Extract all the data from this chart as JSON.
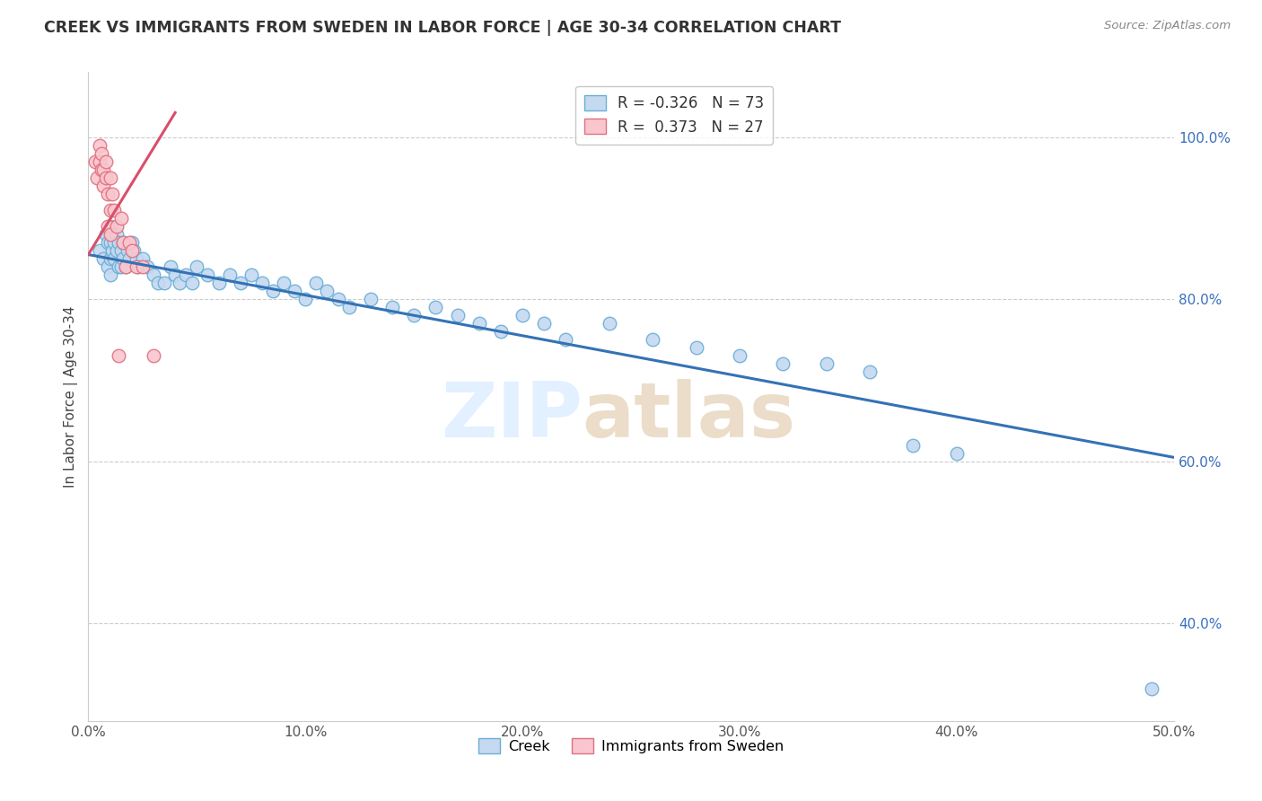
{
  "title": "CREEK VS IMMIGRANTS FROM SWEDEN IN LABOR FORCE | AGE 30-34 CORRELATION CHART",
  "source": "Source: ZipAtlas.com",
  "ylabel": "In Labor Force | Age 30-34",
  "xlim": [
    0.0,
    0.5
  ],
  "ylim": [
    0.28,
    1.08
  ],
  "xticks": [
    0.0,
    0.1,
    0.2,
    0.3,
    0.4,
    0.5
  ],
  "xticklabels": [
    "0.0%",
    "10.0%",
    "20.0%",
    "30.0%",
    "40.0%",
    "50.0%"
  ],
  "yticks_left": [],
  "yticks_right": [
    0.4,
    0.6,
    0.8,
    1.0
  ],
  "yticklabels_right": [
    "40.0%",
    "60.0%",
    "80.0%",
    "100.0%"
  ],
  "creek_R": -0.326,
  "creek_N": 73,
  "sweden_R": 0.373,
  "sweden_N": 27,
  "creek_color": "#c5d9f0",
  "creek_edge_color": "#6baed6",
  "sweden_color": "#f9c6ce",
  "sweden_edge_color": "#e07080",
  "creek_line_color": "#3472b5",
  "sweden_line_color": "#d94f6a",
  "watermark_zip": "ZIP",
  "watermark_atlas": "atlas",
  "creek_trend_x": [
    0.0,
    0.5
  ],
  "creek_trend_y": [
    0.855,
    0.605
  ],
  "sweden_trend_x": [
    0.0,
    0.04
  ],
  "sweden_trend_y": [
    0.855,
    1.03
  ],
  "creek_scatter_x": [
    0.005,
    0.007,
    0.008,
    0.009,
    0.009,
    0.01,
    0.01,
    0.01,
    0.01,
    0.011,
    0.011,
    0.012,
    0.012,
    0.013,
    0.013,
    0.014,
    0.014,
    0.015,
    0.015,
    0.016,
    0.016,
    0.017,
    0.018,
    0.019,
    0.02,
    0.021,
    0.022,
    0.023,
    0.025,
    0.027,
    0.03,
    0.032,
    0.035,
    0.038,
    0.04,
    0.042,
    0.045,
    0.048,
    0.05,
    0.055,
    0.06,
    0.065,
    0.07,
    0.075,
    0.08,
    0.085,
    0.09,
    0.095,
    0.1,
    0.105,
    0.11,
    0.115,
    0.12,
    0.13,
    0.14,
    0.15,
    0.16,
    0.17,
    0.18,
    0.19,
    0.2,
    0.21,
    0.22,
    0.24,
    0.26,
    0.28,
    0.3,
    0.32,
    0.34,
    0.36,
    0.38,
    0.4,
    0.49
  ],
  "creek_scatter_y": [
    0.86,
    0.85,
    0.88,
    0.84,
    0.87,
    0.89,
    0.87,
    0.85,
    0.83,
    0.88,
    0.86,
    0.87,
    0.85,
    0.88,
    0.86,
    0.87,
    0.84,
    0.86,
    0.84,
    0.87,
    0.85,
    0.84,
    0.86,
    0.85,
    0.87,
    0.86,
    0.85,
    0.84,
    0.85,
    0.84,
    0.83,
    0.82,
    0.82,
    0.84,
    0.83,
    0.82,
    0.83,
    0.82,
    0.84,
    0.83,
    0.82,
    0.83,
    0.82,
    0.83,
    0.82,
    0.81,
    0.82,
    0.81,
    0.8,
    0.82,
    0.81,
    0.8,
    0.79,
    0.8,
    0.79,
    0.78,
    0.79,
    0.78,
    0.77,
    0.76,
    0.78,
    0.77,
    0.75,
    0.77,
    0.75,
    0.74,
    0.73,
    0.72,
    0.72,
    0.71,
    0.62,
    0.61,
    0.32
  ],
  "sweden_scatter_x": [
    0.003,
    0.004,
    0.005,
    0.005,
    0.006,
    0.006,
    0.007,
    0.007,
    0.008,
    0.008,
    0.009,
    0.009,
    0.01,
    0.01,
    0.01,
    0.011,
    0.012,
    0.013,
    0.014,
    0.015,
    0.016,
    0.017,
    0.019,
    0.02,
    0.022,
    0.025,
    0.03
  ],
  "sweden_scatter_y": [
    0.97,
    0.95,
    0.99,
    0.97,
    0.96,
    0.98,
    0.96,
    0.94,
    0.97,
    0.95,
    0.93,
    0.89,
    0.95,
    0.91,
    0.88,
    0.93,
    0.91,
    0.89,
    0.73,
    0.9,
    0.87,
    0.84,
    0.87,
    0.86,
    0.84,
    0.84,
    0.73
  ]
}
